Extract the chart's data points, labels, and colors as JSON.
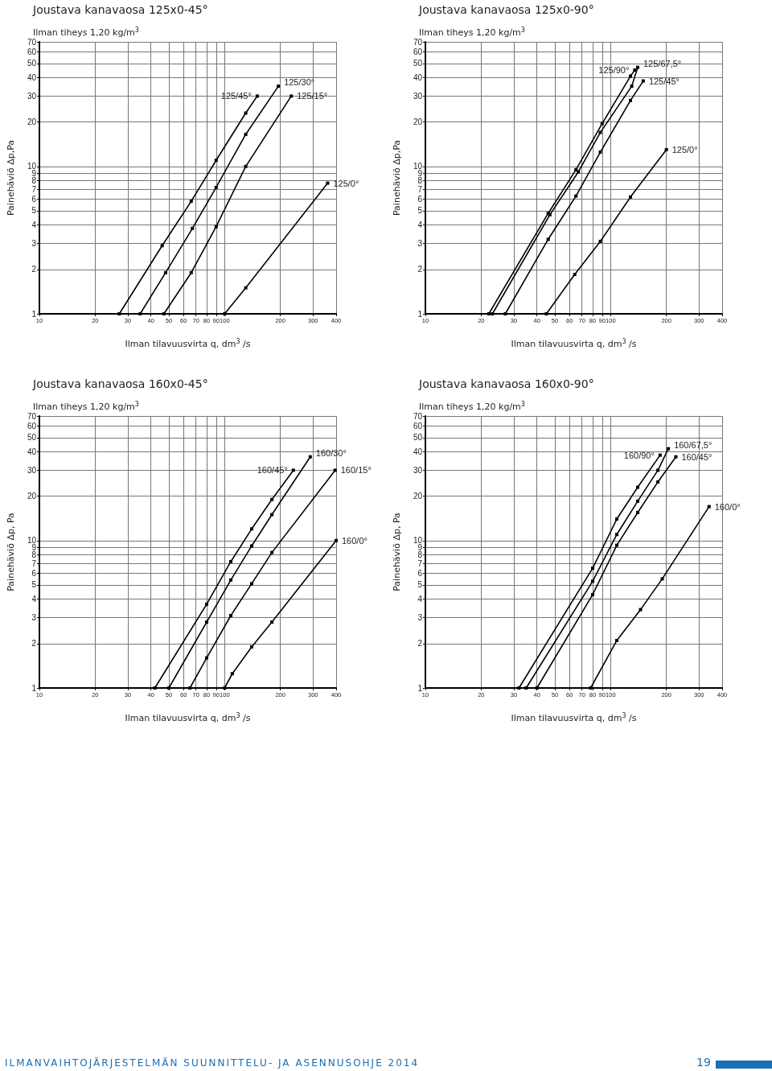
{
  "chart_data": [
    {
      "type": "line",
      "title": "Joustava kanavaosa 125x0-45°",
      "subtitle": "Ilman tiheys 1,20 kg/m$^{3}$",
      "xlabel": "Ilman tilavuusvirta q, dm$^{3}$ /s",
      "ylabel": "Painehäviö Δp,Pa",
      "log": "xy",
      "grid": true,
      "legend": false,
      "marker": "square",
      "line_style": "solid",
      "xlim": [
        10,
        400
      ],
      "ylim": [
        1,
        70
      ],
      "xticks": [
        10,
        20,
        30,
        40,
        50,
        60,
        70,
        80,
        90,
        100,
        200,
        300,
        400
      ],
      "yticks": [
        1,
        2,
        3,
        4,
        5,
        6,
        7,
        8,
        9,
        10,
        20,
        30,
        40,
        50,
        60,
        70
      ],
      "series": [
        {
          "name": "125/45°",
          "color": "#000000",
          "x": [
            27,
            46,
            66,
            90,
            130,
            150
          ],
          "values": [
            1,
            2.9,
            5.8,
            11,
            23,
            30
          ]
        },
        {
          "name": "125/30°",
          "color": "#000000",
          "x": [
            35,
            48,
            67,
            90,
            130,
            195
          ],
          "values": [
            1,
            1.9,
            3.8,
            7.2,
            16.5,
            35
          ]
        },
        {
          "name": "125/15°",
          "color": "#000000",
          "x": [
            47,
            66,
            90,
            130,
            229
          ],
          "values": [
            1,
            1.9,
            3.9,
            10,
            30
          ]
        },
        {
          "name": "125/0°",
          "color": "#000000",
          "x": [
            100,
            130,
            360
          ],
          "values": [
            1,
            1.5,
            7.7
          ]
        }
      ]
    },
    {
      "type": "line",
      "title": "Joustava kanavaosa 125x0-90°",
      "subtitle": "Ilman tiheys 1,20 kg/m$^{3}$",
      "xlabel": "Ilman tilavuusvirta q, dm$^{3}$ /s",
      "ylabel": "Painehäviö Δp,Pa",
      "log": "xy",
      "grid": true,
      "legend": false,
      "marker": "square",
      "line_style": "solid",
      "xlim": [
        10,
        400
      ],
      "ylim": [
        1,
        70
      ],
      "xticks": [
        10,
        20,
        30,
        40,
        50,
        60,
        70,
        80,
        90,
        100,
        200,
        300,
        400
      ],
      "yticks": [
        1,
        2,
        3,
        4,
        5,
        6,
        7,
        8,
        9,
        10,
        20,
        30,
        40,
        50,
        60,
        70
      ],
      "series": [
        {
          "name": "125/90°",
          "color": "#000000",
          "x": [
            22,
            46,
            65,
            90,
            128,
            135
          ],
          "values": [
            1,
            4.8,
            9.5,
            19.5,
            41,
            45
          ]
        },
        {
          "name": "125/67,5°",
          "color": "#000000",
          "x": [
            23,
            47,
            67,
            88,
            130,
            140
          ],
          "values": [
            1,
            4.7,
            9.2,
            17,
            35,
            47
          ]
        },
        {
          "name": "125/45°",
          "color": "#000000",
          "x": [
            27,
            46,
            65,
            88,
            128,
            150
          ],
          "values": [
            1,
            3.2,
            6.3,
            12.5,
            28,
            38
          ]
        },
        {
          "name": "125/0°",
          "color": "#000000",
          "x": [
            45,
            64,
            88,
            128,
            200
          ],
          "values": [
            1,
            1.85,
            3.1,
            6.2,
            13
          ]
        }
      ]
    },
    {
      "type": "line",
      "title": "Joustava kanavaosa 160x0-45°",
      "subtitle": "Ilman tiheys 1,20 kg/m$^{3}$",
      "xlabel": "Ilman tilavuusvirta q, dm$^{3}$ /s",
      "ylabel": "Painehäviö Δp, Pa",
      "log": "xy",
      "grid": true,
      "legend": false,
      "marker": "square",
      "line_style": "solid",
      "xlim": [
        10,
        400
      ],
      "ylim": [
        1,
        70
      ],
      "xticks": [
        10,
        20,
        30,
        40,
        50,
        60,
        70,
        80,
        90,
        100,
        200,
        300,
        400
      ],
      "yticks": [
        1,
        2,
        3,
        4,
        5,
        6,
        7,
        8,
        9,
        10,
        20,
        30,
        40,
        50,
        60,
        70
      ],
      "series": [
        {
          "name": "160/45°",
          "color": "#000000",
          "x": [
            42,
            80,
            108,
            140,
            180,
            235
          ],
          "values": [
            1,
            3.7,
            7.2,
            12,
            19,
            30
          ]
        },
        {
          "name": "160/30°",
          "color": "#000000",
          "x": [
            50,
            80,
            108,
            140,
            180,
            290
          ],
          "values": [
            1,
            2.8,
            5.4,
            9.2,
            15,
            37
          ]
        },
        {
          "name": "160/15°",
          "color": "#000000",
          "x": [
            65,
            80,
            108,
            140,
            180,
            395
          ],
          "values": [
            1,
            1.6,
            3.1,
            5.1,
            8.3,
            30
          ]
        },
        {
          "name": "160/0°",
          "color": "#000000",
          "x": [
            100,
            110,
            140,
            180,
            400
          ],
          "values": [
            1,
            1.25,
            1.9,
            2.8,
            10
          ]
        }
      ]
    },
    {
      "type": "line",
      "title": "Joustava kanavaosa 160x0-90°",
      "subtitle": "Ilman tiheys 1,20 kg/m$^{3}$",
      "xlabel": "Ilman tilavuusvirta q, dm$^{3}$ /s",
      "ylabel": "Painehäviö Δp, Pa",
      "log": "xy",
      "grid": true,
      "legend": false,
      "marker": "square",
      "line_style": "solid",
      "xlim": [
        10,
        400
      ],
      "ylim": [
        1,
        70
      ],
      "xticks": [
        10,
        20,
        30,
        40,
        50,
        60,
        70,
        80,
        90,
        100,
        200,
        300,
        400
      ],
      "yticks": [
        1,
        2,
        3,
        4,
        5,
        6,
        7,
        8,
        9,
        10,
        20,
        30,
        40,
        50,
        60,
        70
      ],
      "annotations": [
        "ILMANVAIHTOJÄRJESTELMÄN SUUNNITTELU- JA ASENNUSOHJE 2014",
        "19"
      ],
      "series": [
        {
          "name": "160/90°",
          "color": "#000000",
          "x": [
            32,
            80,
            108,
            140,
            185
          ],
          "values": [
            1,
            6.5,
            14,
            23,
            38
          ]
        },
        {
          "name": "160/67,5°",
          "color": "#000000",
          "x": [
            35,
            80,
            108,
            140,
            180,
            205
          ],
          "values": [
            1,
            5.3,
            11,
            18.5,
            30,
            42
          ]
        },
        {
          "name": "160/45°",
          "color": "#000000",
          "x": [
            40,
            80,
            108,
            140,
            180,
            225
          ],
          "values": [
            1,
            4.3,
            9.3,
            15.5,
            25,
            37
          ]
        },
        {
          "name": "160/0°",
          "color": "#000000",
          "x": [
            78,
            108,
            145,
            190,
            340
          ],
          "values": [
            1,
            2.1,
            3.4,
            5.5,
            17
          ]
        }
      ]
    }
  ]
}
